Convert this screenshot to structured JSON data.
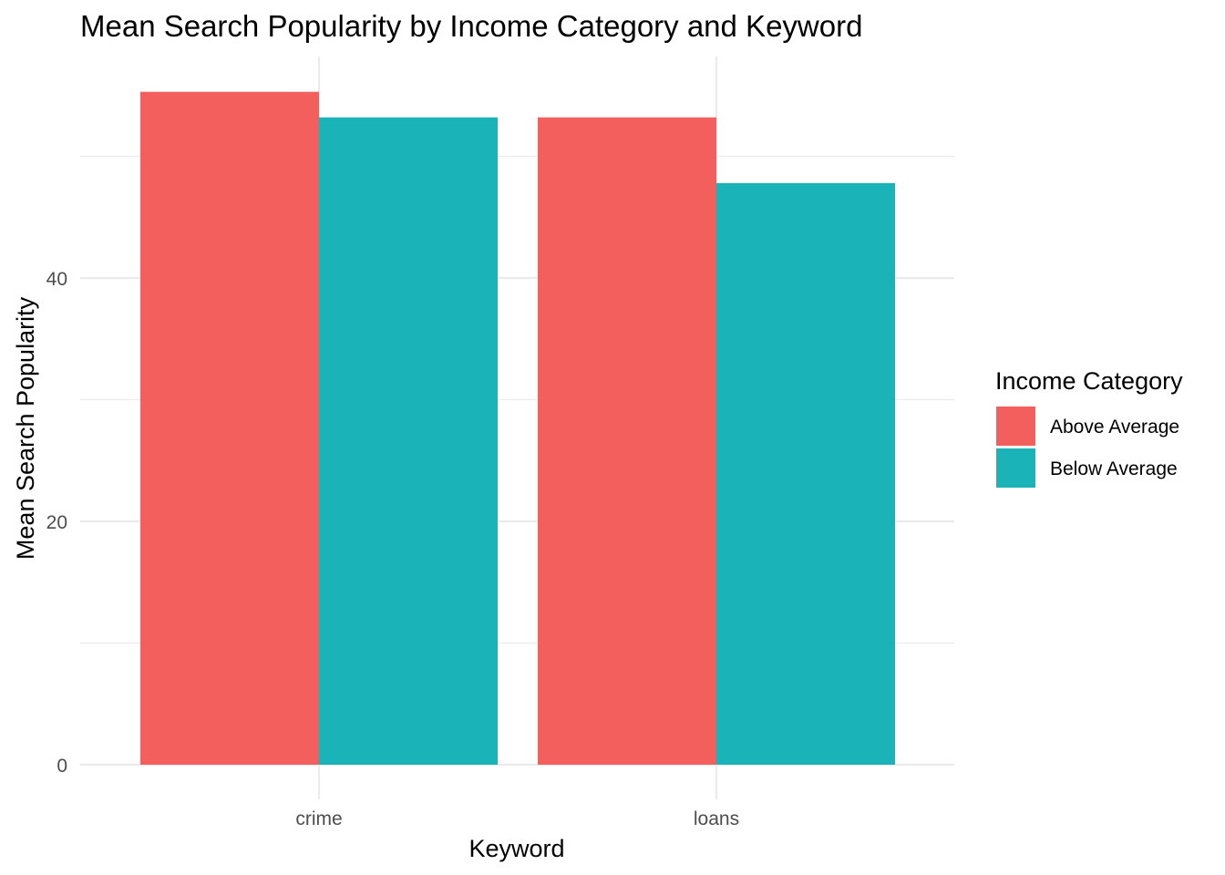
{
  "chart_data": {
    "type": "bar",
    "title": "Mean Search Popularity by Income Category and Keyword",
    "xlabel": "Keyword",
    "ylabel": "Mean Search Popularity",
    "categories": [
      "crime",
      "loans"
    ],
    "series": [
      {
        "name": "Above Average",
        "color": "#F25F5C",
        "values": [
          55.3,
          53.2
        ]
      },
      {
        "name": "Below Average",
        "color": "#19B3B8",
        "values": [
          53.2,
          47.8
        ]
      }
    ],
    "ylim": [
      0,
      58
    ],
    "yticks": [
      0,
      20,
      40
    ],
    "grid": true,
    "legend": {
      "title": "Income Category",
      "placement": "right"
    }
  }
}
